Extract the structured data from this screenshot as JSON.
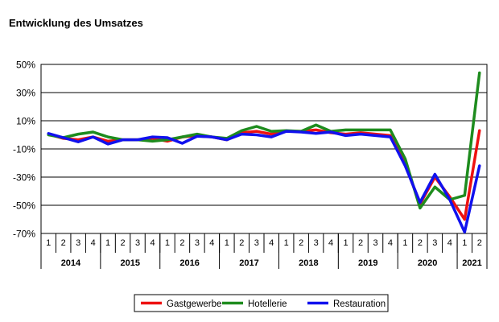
{
  "chart_data": {
    "type": "line",
    "title": "Entwicklung des Umsatzes",
    "xlabel": "",
    "ylabel": "",
    "ylim": [
      -70,
      50
    ],
    "y_ticks": [
      -70,
      -50,
      -30,
      -10,
      10,
      30,
      50
    ],
    "y_tick_suffix": "%",
    "grid": "horizontal",
    "legend_position": "bottom",
    "categories": [
      "1",
      "2",
      "3",
      "4",
      "1",
      "2",
      "3",
      "4",
      "1",
      "2",
      "3",
      "4",
      "1",
      "2",
      "3",
      "4",
      "1",
      "2",
      "3",
      "4",
      "1",
      "2",
      "3",
      "4",
      "1",
      "2",
      "3",
      "4",
      "1",
      "2"
    ],
    "years": [
      {
        "label": "2014",
        "quarters": 4
      },
      {
        "label": "2015",
        "quarters": 4
      },
      {
        "label": "2016",
        "quarters": 4
      },
      {
        "label": "2017",
        "quarters": 4
      },
      {
        "label": "2018",
        "quarters": 4
      },
      {
        "label": "2019",
        "quarters": 4
      },
      {
        "label": "2020",
        "quarters": 4
      },
      {
        "label": "2021",
        "quarters": 2
      }
    ],
    "series": [
      {
        "name": "Gastgewerbe",
        "color": "#ee1111",
        "values": [
          0.5,
          -2.5,
          -3.5,
          -1.5,
          -4.5,
          -3.5,
          -3.5,
          -2.5,
          -4.5,
          -1.5,
          -0.5,
          -1.5,
          -3.5,
          1.5,
          2.5,
          0.5,
          2.5,
          2.5,
          3.5,
          1.5,
          0.5,
          1.5,
          0.5,
          -0.5,
          -21,
          -49,
          -30,
          -44,
          -60,
          3
        ]
      },
      {
        "name": "Hotellerie",
        "color": "#1e8c1e",
        "values": [
          0,
          -2,
          0.5,
          2,
          -1.5,
          -3.5,
          -3.5,
          -4.5,
          -3.5,
          -1.5,
          0.5,
          -1.5,
          -2.5,
          3,
          6,
          2.5,
          3,
          2.5,
          7,
          2.5,
          3.5,
          3.5,
          3.5,
          3.5,
          -17,
          -52,
          -37,
          -46,
          -43,
          44
        ]
      },
      {
        "name": "Restauration",
        "color": "#1111ee",
        "values": [
          1,
          -2,
          -5,
          -1.5,
          -6.5,
          -3.5,
          -3.5,
          -1.5,
          -2,
          -6,
          -1,
          -1.5,
          -3.5,
          0.5,
          0,
          -1.5,
          2.5,
          2,
          1,
          2,
          -0.5,
          0.5,
          -0.5,
          -1.5,
          -22,
          -48,
          -28,
          -46,
          -69,
          -22
        ]
      }
    ]
  }
}
